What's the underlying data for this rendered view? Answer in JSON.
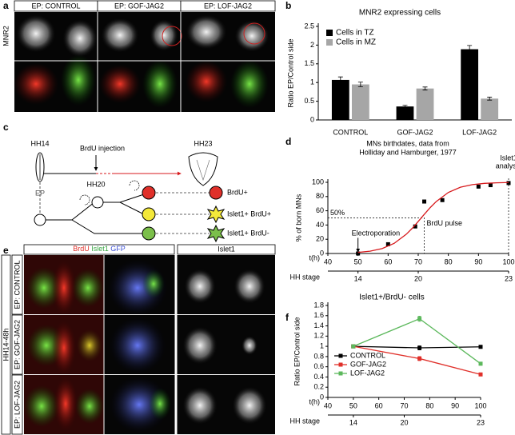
{
  "panel_labels": [
    "a",
    "b",
    "c",
    "d",
    "e",
    "f"
  ],
  "panel_a": {
    "columns": [
      "EP: CONTROL",
      "EP: GOF-JAG2",
      "EP: LOF-JAG2"
    ],
    "row_label": "MNR2"
  },
  "panel_c": {
    "start": "HH14",
    "injection": "BrdU injection",
    "end": "HH23",
    "mid": "HH20",
    "ep": "EP",
    "outcomes": [
      "BrdU+",
      "Islet1+ BrdU+",
      "Islet1+ BrdU-"
    ]
  },
  "panel_e": {
    "stains": [
      {
        "text": "BrdU",
        "color": "#e0302a"
      },
      {
        "text": "Islet1",
        "color": "#3aa845"
      },
      {
        "text": "GFP",
        "color": "#3b4fd6"
      }
    ],
    "islet_header": "Islet1",
    "side_label": "HH14-48h",
    "rows": [
      "EP: CONTROL",
      "EP: GOF-JAG2",
      "EP: LOF-JAG2"
    ]
  },
  "chart_data": [
    {
      "type": "bar",
      "title": "MNR2 expressing cells",
      "ylabel": "Ratio EP/Control side",
      "categories": [
        "CONTROL",
        "GOF-JAG2",
        "LOF-JAG2"
      ],
      "series": [
        {
          "name": "Cells in TZ",
          "color": "#000000",
          "values": [
            1.07,
            0.36,
            1.89
          ],
          "errors": [
            0.08,
            0.03,
            0.1
          ]
        },
        {
          "name": "Cells in MZ",
          "color": "#a6a6a6",
          "values": [
            0.95,
            0.84,
            0.57
          ],
          "errors": [
            0.06,
            0.04,
            0.04
          ]
        }
      ],
      "ylim": [
        0,
        2.5
      ],
      "yticks": [
        0,
        0.5,
        1,
        1.5,
        2,
        2.5
      ],
      "legend": "upper-left"
    },
    {
      "type": "line",
      "title": [
        "MNs birthdates, data from",
        "Holliday and Hamburger, 1977"
      ],
      "ylabel": "% of born MNs",
      "xlabel": "t(h)",
      "xlim": [
        40,
        100
      ],
      "xticks": [
        40,
        50,
        60,
        70,
        80,
        90,
        100
      ],
      "ylim": [
        0,
        100
      ],
      "yticks": [
        0,
        20,
        40,
        60,
        80,
        100
      ],
      "stage_label": "HH stage",
      "stages": [
        {
          "value": 50,
          "label": "14"
        },
        {
          "value": 70,
          "label": "20"
        },
        {
          "value": 100,
          "label": "23"
        }
      ],
      "series": [
        {
          "color": "#000000",
          "marker": "square",
          "line": false,
          "x": [
            50,
            60,
            69,
            72,
            78,
            90,
            94,
            100
          ],
          "values": [
            0,
            13,
            38,
            73,
            75,
            94,
            96,
            99
          ]
        },
        {
          "color": "#d7191c",
          "marker": "none",
          "line": true,
          "x": [
            50,
            54,
            58,
            62,
            66,
            68,
            70,
            72,
            74,
            76,
            80,
            84,
            88,
            92,
            96,
            100
          ],
          "values": [
            1.5,
            3.2,
            6.9,
            14.2,
            26.9,
            35.4,
            45,
            55,
            64.6,
            73.1,
            85.8,
            93.1,
            96.8,
            98.5,
            99.3,
            99.7
          ]
        }
      ],
      "annotations": [
        {
          "text": [
            "50%"
          ],
          "x": 72,
          "y": 50,
          "style": "corner"
        },
        {
          "text": [
            "BrdU pulse"
          ],
          "x": 72,
          "style": "label"
        },
        {
          "text": [
            "Electroporation"
          ],
          "x": 50,
          "style": "arrow"
        },
        {
          "text": [
            "Islet1",
            "analysis"
          ],
          "x": 100,
          "style": "dashed"
        }
      ]
    },
    {
      "type": "line",
      "title": "Islet1+/BrdU- cells",
      "ylabel": "Ratio EP/Control side",
      "xlabel": "t(h)",
      "xlim": [
        40,
        100
      ],
      "xticks": [
        40,
        50,
        60,
        70,
        80,
        90,
        100
      ],
      "ylim": [
        0,
        1.8
      ],
      "yticks": [
        0,
        0.2,
        0.4,
        0.6,
        0.8,
        1,
        1.2,
        1.4,
        1.6,
        1.8
      ],
      "stage_label": "HH stage",
      "stages": [
        {
          "value": 50,
          "label": "14"
        },
        {
          "value": 70,
          "label": "20"
        },
        {
          "value": 100,
          "label": "23"
        }
      ],
      "series": [
        {
          "name": "CONTROL",
          "color": "#000000",
          "marker": "square",
          "line": true,
          "x": [
            50,
            76,
            100
          ],
          "values": [
            1,
            0.97,
            0.99
          ],
          "errors": [
            0.02,
            0.04,
            0.02
          ]
        },
        {
          "name": "GOF-JAG2",
          "color": "#e0302a",
          "marker": "square",
          "line": true,
          "x": [
            50,
            76,
            100
          ],
          "values": [
            1,
            0.76,
            0.45
          ],
          "errors": [
            0.02,
            0.04,
            0.02
          ]
        },
        {
          "name": "LOF-JAG2",
          "color": "#5cb85c",
          "marker": "square",
          "line": true,
          "x": [
            50,
            76,
            100
          ],
          "values": [
            1,
            1.54,
            0.66
          ],
          "errors": [
            0.02,
            0.05,
            0.03
          ]
        }
      ],
      "legend": "lower-left"
    }
  ]
}
